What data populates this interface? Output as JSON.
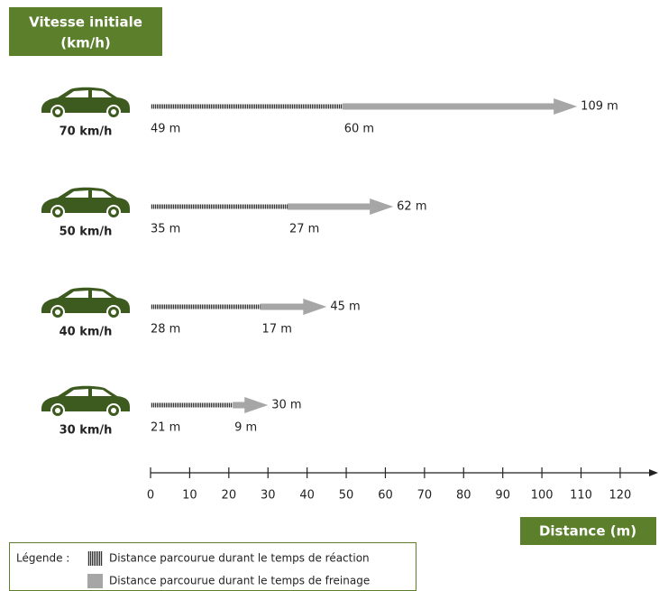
{
  "chart_data": {
    "type": "bar",
    "title": "Vitesse initiale",
    "subtitle": "(km/h)",
    "x_label": "Distance (m)",
    "categories": [
      "70 km/h",
      "50 km/h",
      "40 km/h",
      "30 km/h"
    ],
    "series": [
      {
        "name": "Distance parcourue durant le temps de réaction",
        "color": "#3a3a3a",
        "values": [
          49,
          35,
          28,
          21
        ],
        "value_labels": [
          "49 m",
          "35 m",
          "28 m",
          "21 m"
        ]
      },
      {
        "name": "Distance parcourue durant le temps de freinage",
        "color": "#a6a6a6",
        "values": [
          60,
          27,
          17,
          9
        ],
        "value_labels": [
          "60 m",
          "27 m",
          "17 m",
          "9 m"
        ]
      }
    ],
    "totals": {
      "values": [
        109,
        62,
        45,
        30
      ],
      "value_labels": [
        "109 m",
        "62 m",
        "45 m",
        "30 m"
      ]
    },
    "legend_title": "Légende :",
    "xlim": [
      0,
      129
    ],
    "xticks": [
      0,
      10,
      20,
      30,
      40,
      50,
      60,
      70,
      80,
      90,
      100,
      110,
      120
    ],
    "accent_color": "#5b7f2b"
  }
}
